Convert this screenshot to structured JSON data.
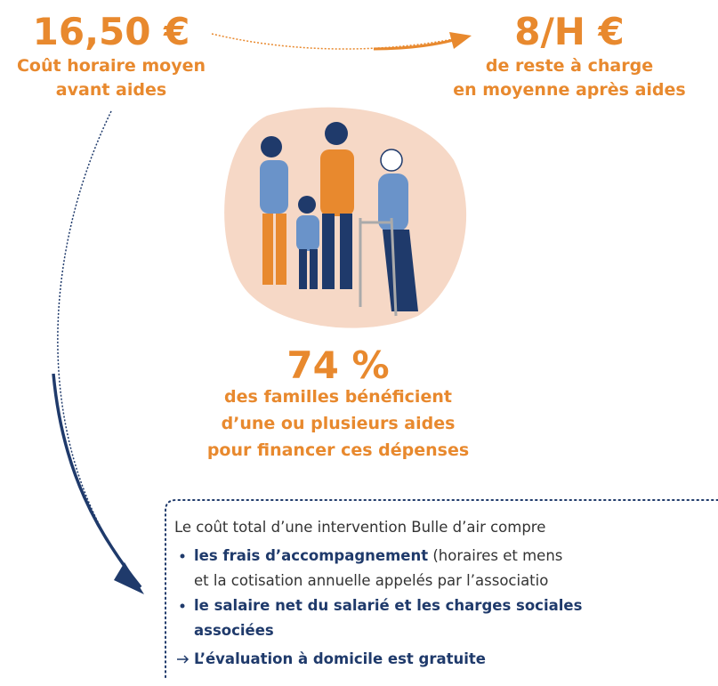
{
  "cost_before": {
    "amount": "16,50 €",
    "lines": [
      "Coût horaire moyen",
      "avant aides"
    ]
  },
  "cost_after": {
    "amount": "8/H €",
    "lines": [
      "de reste à charge",
      "en moyenne après aides"
    ]
  },
  "families": {
    "amount": "74 %",
    "lines": [
      "des familles bénéficient",
      "d’une ou plusieurs aides",
      "pour financer ces dépenses"
    ]
  },
  "info_box": {
    "intro": "Le coût total d’une intervention Bulle d’air compre",
    "items": [
      {
        "bold": "les frais d’accompagnement",
        "text": " (horaires et mens",
        "continuation": "et la cotisation annuelle appelés par l’associatio"
      },
      {
        "bold_lines": [
          "le salaire net du salarié et les charges sociales",
          "associées"
        ]
      }
    ],
    "note": "L’évaluation à domicile est gratuite"
  }
}
